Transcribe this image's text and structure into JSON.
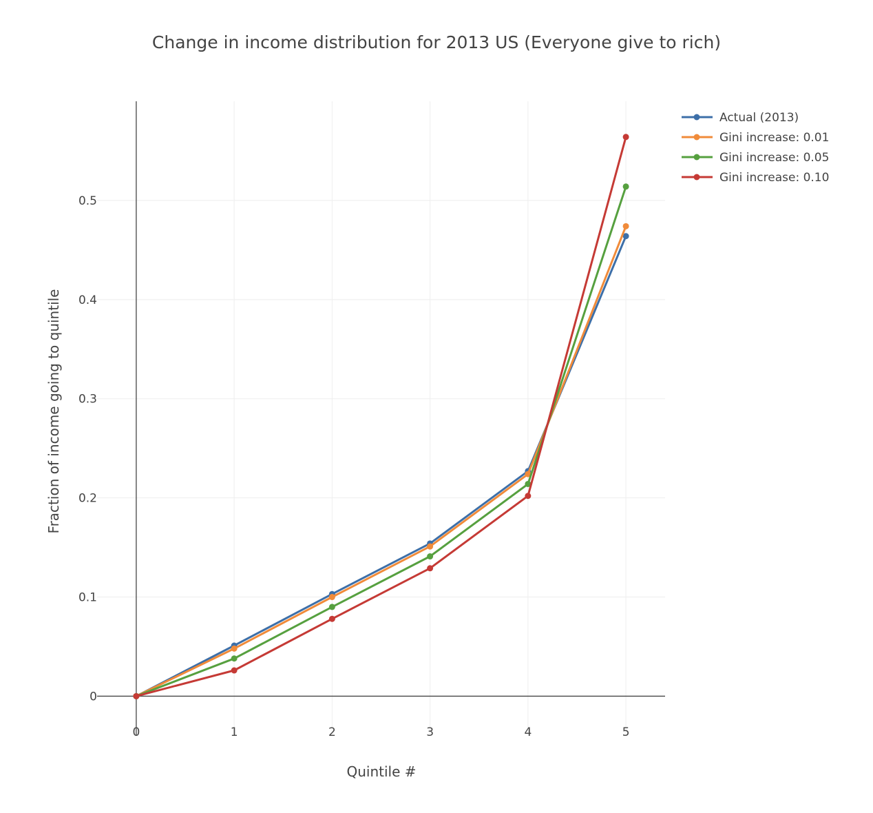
{
  "chart_data": {
    "type": "line",
    "title": "Change in income distribution for 2013 US (Everyone give to rich)",
    "xlabel": "Quintile #",
    "ylabel": "Fraction of income going to quintile",
    "xlim": [
      -0.4,
      5.4
    ],
    "ylim": [
      -0.04,
      0.6
    ],
    "x": [
      0,
      1,
      2,
      3,
      4,
      5
    ],
    "x_ticks": [
      0,
      1,
      2,
      3,
      4,
      5
    ],
    "x_tick_labels": [
      "0",
      "1",
      "2",
      "3",
      "4",
      "5"
    ],
    "y_ticks": [
      0,
      0.1,
      0.2,
      0.3,
      0.4,
      0.5
    ],
    "y_tick_labels": [
      "0",
      "0.1",
      "0.2",
      "0.3",
      "0.4",
      "0.5"
    ],
    "grid": true,
    "legend_position": "top-right",
    "series": [
      {
        "name": "Actual (2013)",
        "color": "#3d6fa8",
        "values": [
          0,
          0.051,
          0.103,
          0.154,
          0.227,
          0.464
        ]
      },
      {
        "name": "Gini increase: 0.01",
        "color": "#f08b3a",
        "values": [
          0,
          0.048,
          0.1,
          0.151,
          0.224,
          0.474
        ]
      },
      {
        "name": "Gini increase: 0.05",
        "color": "#56a03f",
        "values": [
          0,
          0.038,
          0.09,
          0.141,
          0.214,
          0.514
        ]
      },
      {
        "name": "Gini increase: 0.10",
        "color": "#c53a35",
        "values": [
          0,
          0.026,
          0.078,
          0.129,
          0.202,
          0.564
        ]
      }
    ]
  }
}
